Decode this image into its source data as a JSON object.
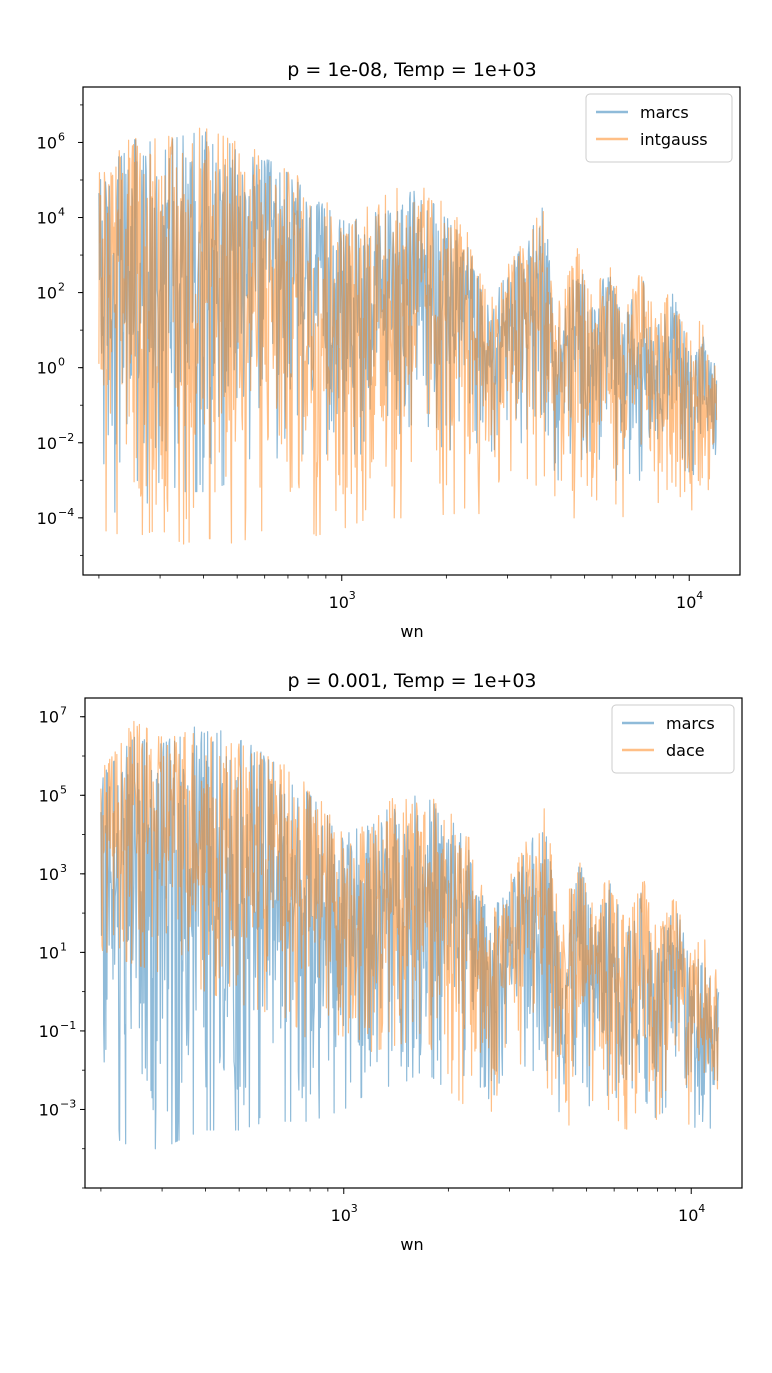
{
  "chart_data": [
    {
      "type": "line",
      "title": "p = 1e-08, Temp = 1e+03",
      "xlabel": "wn",
      "ylabel": "",
      "xscale": "log",
      "yscale": "log",
      "xlim": [
        180,
        14000
      ],
      "ylim": [
        3e-06,
        30000000.0
      ],
      "x_ticks": [
        {
          "base": "10",
          "exp": "3",
          "value": 1000
        },
        {
          "base": "10",
          "exp": "4",
          "value": 10000
        }
      ],
      "y_ticks": [
        {
          "base": "10",
          "exp": "6",
          "value": 1000000.0
        },
        {
          "base": "10",
          "exp": "4",
          "value": 10000.0
        },
        {
          "base": "10",
          "exp": "2",
          "value": 100.0
        },
        {
          "base": "10",
          "exp": "0",
          "value": 1
        },
        {
          "base": "10",
          "exp": "−2",
          "value": 0.01
        },
        {
          "base": "10",
          "exp": "−4",
          "value": 0.0001
        }
      ],
      "legend_position": "top-right",
      "series": [
        {
          "name": "marcs",
          "color": "#1f77b4",
          "x": [
            200,
            250,
            300,
            350,
            400,
            500,
            600,
            700,
            800,
            1000,
            1200,
            1500,
            1700,
            2000,
            2300,
            2600,
            3000,
            3500,
            3800,
            4200,
            4800,
            5300,
            5800,
            6500,
            7300,
            8000,
            9000,
            10000,
            10800,
            11500,
            12000
          ],
          "upper": [
            90000.0,
            1200000.0,
            1000000.0,
            1500000.0,
            2000000.0,
            800000.0,
            400000.0,
            150000.0,
            50000.0,
            8000.0,
            10000.0,
            50000.0,
            50000.0,
            10000.0,
            3000.0,
            50,
            300,
            5000.0,
            20000.0,
            20,
            1000.0,
            30,
            500,
            20,
            300,
            10,
            100,
            3,
            10,
            2,
            1
          ],
          "lower": [
            0.0001,
            5e-05,
            0.001,
            0.0005,
            0.0005,
            0.001,
            0.003,
            0.005,
            0.005,
            0.005,
            0.005,
            0.02,
            0.05,
            0.005,
            0.02,
            0.005,
            0.01,
            0.01,
            0.01,
            0.001,
            0.001,
            0.01,
            0.001,
            0.001,
            0.001,
            0.01,
            0.01,
            0.001,
            0.001,
            0.001,
            0.001
          ]
        },
        {
          "name": "intgauss",
          "color": "#ff7f0e",
          "x": [
            200,
            250,
            300,
            350,
            400,
            500,
            600,
            700,
            800,
            1000,
            1200,
            1500,
            1700,
            2000,
            2300,
            2600,
            3000,
            3500,
            3800,
            4200,
            4800,
            5300,
            5800,
            6500,
            7300,
            8000,
            9000,
            10000,
            10800,
            11500,
            12000
          ],
          "upper": [
            150000.0,
            1500000.0,
            1200000.0,
            2000000.0,
            2500000.0,
            1000000.0,
            500000.0,
            200000.0,
            80000.0,
            10000.0,
            20000.0,
            80000.0,
            80000.0,
            20000.0,
            5000.0,
            100,
            500,
            8000.0,
            30000.0,
            50,
            2000.0,
            50,
            1000.0,
            30,
            500,
            20,
            200,
            5,
            20,
            3,
            2
          ],
          "lower": [
            5e-05,
            3e-05,
            5e-05,
            2e-05,
            3e-05,
            2e-05,
            5e-05,
            5e-05,
            3e-05,
            5e-05,
            0.0001,
            0.0001,
            0.0005,
            0.0001,
            0.0002,
            0.0001,
            0.002,
            0.001,
            0.0005,
            0.0001,
            0.0001,
            0.0003,
            0.0003,
            0.0001,
            0.001,
            0.0002,
            0.001,
            0.0001,
            0.0002,
            0.0001,
            0.001
          ]
        }
      ]
    },
    {
      "type": "line",
      "title": "p = 0.001, Temp = 1e+03",
      "xlabel": "wn",
      "ylabel": "",
      "xscale": "log",
      "yscale": "log",
      "xlim": [
        180,
        14000
      ],
      "ylim": [
        1e-05,
        30000000.0
      ],
      "x_ticks": [
        {
          "base": "10",
          "exp": "3",
          "value": 1000
        },
        {
          "base": "10",
          "exp": "4",
          "value": 10000
        }
      ],
      "y_ticks": [
        {
          "base": "10",
          "exp": "7",
          "value": 10000000.0
        },
        {
          "base": "10",
          "exp": "5",
          "value": 100000.0
        },
        {
          "base": "10",
          "exp": "3",
          "value": 1000.0
        },
        {
          "base": "10",
          "exp": "1",
          "value": 10
        },
        {
          "base": "10",
          "exp": "−1",
          "value": 0.1
        },
        {
          "base": "10",
          "exp": "−3",
          "value": 0.001
        }
      ],
      "legend_position": "top-right",
      "series": [
        {
          "name": "marcs",
          "color": "#1f77b4",
          "x": [
            200,
            250,
            300,
            350,
            400,
            500,
            600,
            700,
            800,
            1000,
            1200,
            1500,
            1700,
            2000,
            2300,
            2600,
            3000,
            3500,
            3800,
            4200,
            4800,
            5300,
            5800,
            6500,
            7300,
            8000,
            9000,
            10000,
            10800,
            11500,
            12000
          ],
          "upper": [
            300000.0,
            3000000.0,
            2000000.0,
            5000000.0,
            6000000.0,
            3000000.0,
            1000000.0,
            300000.0,
            100000.0,
            10000.0,
            20000.0,
            100000.0,
            100000.0,
            30000.0,
            5000.0,
            100,
            500,
            10000.0,
            30000.0,
            50,
            2000.0,
            50,
            1000.0,
            30,
            500,
            20,
            200,
            5,
            20,
            3,
            2
          ],
          "lower": [
            0.0003,
            0.0001,
            0.0001,
            0.0002,
            0.0003,
            0.0003,
            0.0005,
            0.0005,
            0.0005,
            0.001,
            0.003,
            0.005,
            0.01,
            0.003,
            0.002,
            0.001,
            0.02,
            0.01,
            0.005,
            0.0005,
            0.0003,
            0.001,
            0.001,
            0.0003,
            0.002,
            0.0005,
            0.003,
            0.0003,
            0.0005,
            0.0003,
            0.001
          ]
        },
        {
          "name": "dace",
          "color": "#ff7f0e",
          "x": [
            200,
            250,
            300,
            350,
            400,
            500,
            600,
            700,
            800,
            1000,
            1200,
            1500,
            1700,
            2000,
            2300,
            2600,
            3000,
            3500,
            3800,
            4200,
            4800,
            5300,
            5800,
            6500,
            7300,
            8000,
            9000,
            10000,
            10800,
            11500,
            12000
          ],
          "upper": [
            500000.0,
            8000000.0,
            3000000.0,
            8000000.0,
            5000000.0,
            2000000.0,
            1000000.0,
            500000.0,
            150000.0,
            15000.0,
            30000.0,
            150000.0,
            150000.0,
            50000.0,
            8000.0,
            150,
            800,
            15000.0,
            50000.0,
            80,
            3000.0,
            80,
            1500.0,
            50,
            800,
            30,
            300,
            8,
            30,
            5,
            3
          ],
          "lower": [
            10,
            5,
            3,
            2,
            1,
            0.5,
            0.3,
            0.2,
            0.05,
            0.02,
            0.03,
            0.05,
            0.1,
            0.003,
            0.001,
            0.0005,
            0.02,
            0.01,
            0.005,
            0.0005,
            0.0003,
            0.001,
            0.001,
            0.0003,
            0.002,
            0.0005,
            0.003,
            0.0003,
            0.0005,
            0.0003,
            0.001
          ]
        }
      ]
    }
  ]
}
